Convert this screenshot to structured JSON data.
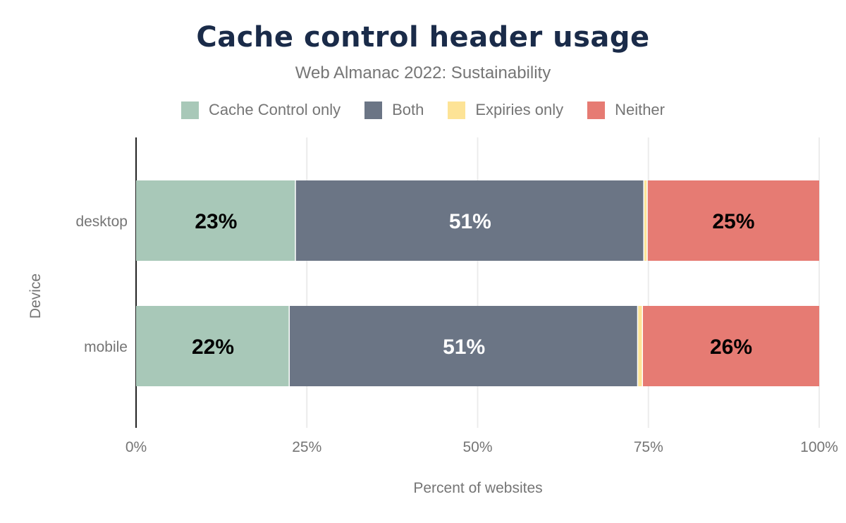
{
  "chart_data": {
    "type": "bar",
    "orientation": "horizontal",
    "stacked": true,
    "title": "Cache control header usage",
    "subtitle": "Web Almanac 2022: Sustainability",
    "xlabel": "Percent of websites",
    "ylabel": "Device",
    "xlim": [
      0,
      100
    ],
    "x_ticks": [
      "0%",
      "25%",
      "50%",
      "75%",
      "100%"
    ],
    "grid": true,
    "legend_position": "top",
    "categories": [
      "desktop",
      "mobile"
    ],
    "series": [
      {
        "name": "Cache Control only",
        "color": "#a8c8b8",
        "values": [
          23.4,
          22.5
        ],
        "labels": [
          "23%",
          "22%"
        ],
        "label_color": "#000000"
      },
      {
        "name": "Both",
        "color": "#6b7585",
        "values": [
          51.0,
          51.0
        ],
        "labels": [
          "51%",
          "51%"
        ],
        "label_color": "#ffffff"
      },
      {
        "name": "Expiries only",
        "color": "#fde396",
        "values": [
          0.5,
          0.7
        ],
        "labels": [
          "",
          ""
        ],
        "label_color": "#000000"
      },
      {
        "name": "Neither",
        "color": "#e67b73",
        "values": [
          25.1,
          25.8
        ],
        "labels": [
          "25%",
          "26%"
        ],
        "label_color": "#000000"
      }
    ]
  }
}
